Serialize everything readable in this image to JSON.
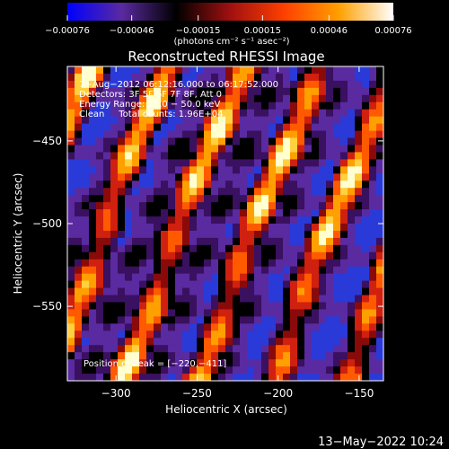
{
  "chart_data": {
    "type": "heatmap",
    "title": "Reconstructed RHESSI Image",
    "xlabel": "Heliocentric X (arcsec)",
    "ylabel": "Heliocentric Y (arcsec)",
    "xlim": [
      -330,
      -135
    ],
    "ylim": [
      -595,
      -405
    ],
    "x_ticks": [
      -300,
      -250,
      -200,
      -150
    ],
    "x_tick_labels": [
      "−300",
      "−250",
      "−200",
      "−150"
    ],
    "y_ticks": [
      -450,
      -500,
      -550
    ],
    "y_tick_labels": [
      "−450",
      "−500",
      "−550"
    ],
    "colorbar": {
      "min": -0.00076,
      "max": 0.00076,
      "ticks": [
        -0.00076,
        -0.00046,
        -0.00015,
        0.00015,
        0.00046,
        0.00076
      ],
      "tick_labels": [
        "−0.00076",
        "−0.00046",
        "−0.00015",
        "0.00015",
        "0.00046",
        "0.00076"
      ],
      "unit_label": "(photons cm⁻² s⁻¹ asec⁻²)",
      "colors": [
        "#0000ff",
        "#5a2aa0",
        "#000000",
        "#a01010",
        "#ff4000",
        "#ffa000",
        "#ffffff"
      ]
    },
    "annotations": [
      "7−Aug−2012 06:12:16.000 to 06:17:52.000",
      "Detectors: 3F 5F 6F 7F 8F, Att 0",
      "Energy Range: 25.0 − 50.0 keV",
      "Clean     Total counts: 1.96E+04"
    ],
    "peak_label": "Position of Peak = [−220,−411]",
    "peak": [
      -220,
      -411
    ],
    "timestamp": "13−May−2022 10:24"
  }
}
